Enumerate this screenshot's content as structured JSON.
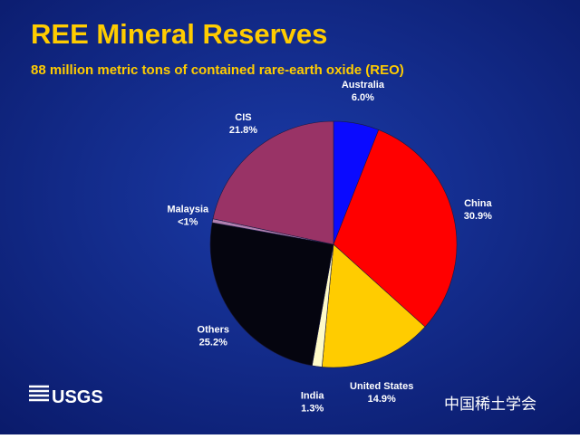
{
  "chart_data": {
    "type": "pie",
    "title": "REE Mineral Reserves",
    "subtitle": "88 million metric tons of contained rare-earth oxide (REO)",
    "categories": [
      "Australia",
      "China",
      "United States",
      "India",
      "Others",
      "Malaysia",
      "CIS"
    ],
    "values": [
      6.0,
      30.9,
      14.9,
      1.3,
      25.2,
      0.5,
      21.8
    ],
    "value_labels": [
      "6.0%",
      "30.9%",
      "14.9%",
      "1.3%",
      "25.2%",
      "<1%",
      "21.8%"
    ],
    "colors": [
      "#0a0aff",
      "#ff0000",
      "#ffcc00",
      "#fffbc8",
      "#05050f",
      "#b080b0",
      "#993366"
    ]
  },
  "footer": {
    "logo": "USGS",
    "watermark": "中国稀土学会"
  }
}
